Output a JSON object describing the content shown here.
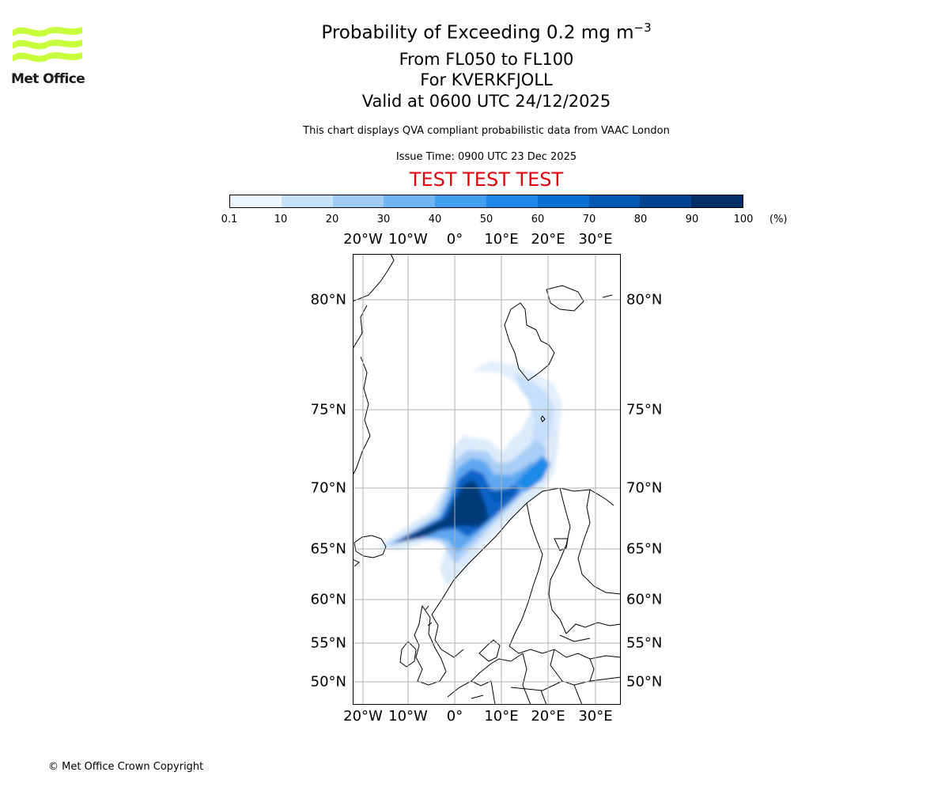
{
  "header": {
    "title_prefix": "Probability of Exceeding 0.2 mg m",
    "title_exponent": "−3",
    "levels": "From FL050 to FL100",
    "volcano": "For KVERKFJOLL",
    "valid": "Valid at 0600 UTC 24/12/2025",
    "description": "This chart displays QVA compliant probabilistic data from VAAC London",
    "issue_time": "Issue Time: 0900 UTC 23 Dec 2025",
    "test_banner": "TEST TEST TEST"
  },
  "logo": {
    "text": "Met Office",
    "color": "#c8ff3c"
  },
  "colorbar": {
    "ticks": [
      "0.1",
      "10",
      "20",
      "30",
      "40",
      "50",
      "60",
      "70",
      "80",
      "90",
      "100"
    ],
    "unit": "(%)",
    "colors": [
      "#eef6ff",
      "#c6e0f8",
      "#a0cbf5",
      "#6fb5f2",
      "#42a0f0",
      "#1f8ae8",
      "#0a70d6",
      "#0558b4",
      "#034490",
      "#022f66"
    ]
  },
  "map": {
    "lon_labels": [
      "20°W",
      "10°W",
      "0°",
      "10°E",
      "20°E",
      "30°E"
    ],
    "lat_labels": [
      "80°N",
      "75°N",
      "70°N",
      "65°N",
      "60°N",
      "55°N",
      "50°N"
    ]
  },
  "footer": {
    "copyright": "© Met Office Crown Copyright"
  }
}
